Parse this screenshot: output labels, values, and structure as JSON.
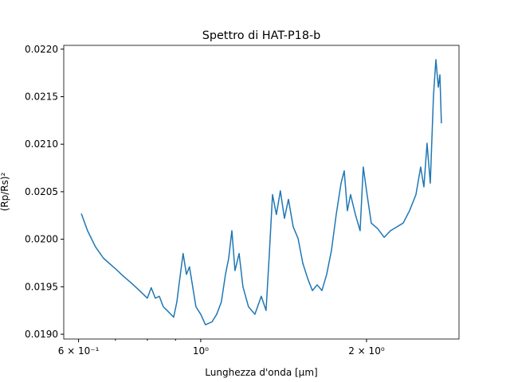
{
  "chart_data": {
    "type": "line",
    "title": "Spettro di HAT-P18-b",
    "xlabel": "Lunghezza d'onda [μm]",
    "ylabel": "(Rp/Rs)²",
    "xscale": "log",
    "color": "#1f77b4",
    "xlim": [
      0.564,
      2.944
    ],
    "ylim": [
      0.01895,
      0.02204
    ],
    "xticks": [
      {
        "value": 0.6,
        "label": "6 × 10⁻¹"
      },
      {
        "value": 1,
        "label": "10⁰"
      },
      {
        "value": 2,
        "label": "2 × 10⁰"
      }
    ],
    "xminorticks": [
      0.7,
      0.8,
      0.9
    ],
    "yticks": [
      {
        "value": 0.019,
        "label": "0.0190"
      },
      {
        "value": 0.0195,
        "label": "0.0195"
      },
      {
        "value": 0.02,
        "label": "0.0200"
      },
      {
        "value": 0.0205,
        "label": "0.0205"
      },
      {
        "value": 0.021,
        "label": "0.0210"
      },
      {
        "value": 0.0215,
        "label": "0.0215"
      },
      {
        "value": 0.022,
        "label": "0.0220"
      }
    ],
    "x": [
      0.607,
      0.623,
      0.644,
      0.666,
      0.7,
      0.724,
      0.748,
      0.774,
      0.8,
      0.813,
      0.827,
      0.841,
      0.855,
      0.869,
      0.893,
      0.905,
      0.914,
      0.929,
      0.942,
      0.954,
      0.967,
      0.98,
      1.0,
      1.02,
      1.048,
      1.069,
      1.09,
      1.109,
      1.124,
      1.139,
      1.154,
      1.174,
      1.193,
      1.221,
      1.254,
      1.288,
      1.314,
      1.332,
      1.35,
      1.372,
      1.395,
      1.419,
      1.443,
      1.472,
      1.502,
      1.532,
      1.563,
      1.595,
      1.627,
      1.66,
      1.693,
      1.727,
      1.762,
      1.798,
      1.822,
      1.846,
      1.871,
      1.909,
      1.947,
      1.973,
      2.0,
      2.04,
      2.096,
      2.153,
      2.211,
      2.27,
      2.331,
      2.394,
      2.459,
      2.508,
      2.542,
      2.576,
      2.611,
      2.646,
      2.673,
      2.7,
      2.718,
      2.735
    ],
    "values": [
      0.02027,
      0.02009,
      0.01992,
      0.0198,
      0.01969,
      0.01961,
      0.01954,
      0.01946,
      0.01938,
      0.01949,
      0.01938,
      0.0194,
      0.01929,
      0.01925,
      0.01918,
      0.01934,
      0.01954,
      0.01985,
      0.01963,
      0.01971,
      0.0195,
      0.01929,
      0.01921,
      0.0191,
      0.01913,
      0.01921,
      0.01934,
      0.01963,
      0.0198,
      0.02009,
      0.01967,
      0.01985,
      0.0195,
      0.01929,
      0.01921,
      0.0194,
      0.01925,
      0.01984,
      0.02047,
      0.02026,
      0.02051,
      0.02022,
      0.02042,
      0.02013,
      0.02001,
      0.01975,
      0.01959,
      0.01946,
      0.01952,
      0.01946,
      0.01963,
      0.01988,
      0.02026,
      0.02059,
      0.02072,
      0.0203,
      0.02047,
      0.02026,
      0.02009,
      0.02076,
      0.02051,
      0.02017,
      0.02011,
      0.02002,
      0.02009,
      0.02013,
      0.02017,
      0.0203,
      0.02047,
      0.02076,
      0.02055,
      0.02101,
      0.02059,
      0.02151,
      0.02189,
      0.0216,
      0.02173,
      0.02122
    ]
  }
}
